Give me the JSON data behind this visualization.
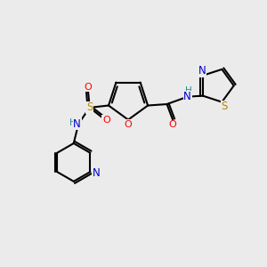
{
  "bg_color": "#ebebeb",
  "bond_color": "#000000",
  "atom_colors": {
    "O": "#ff0000",
    "N": "#0000cd",
    "S_sulfonyl": "#b8860b",
    "S_thiazole": "#b8860b",
    "H": "#2e8b8b",
    "C": "#000000"
  },
  "figsize": [
    3.0,
    3.0
  ],
  "dpi": 100
}
